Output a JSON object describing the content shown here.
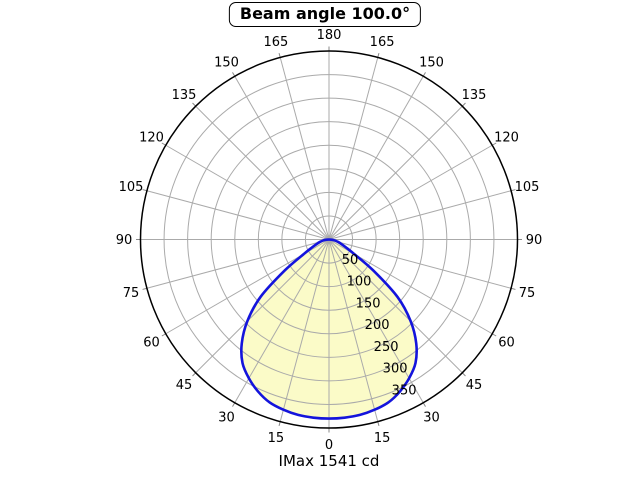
{
  "page": {
    "background": "#ffffff"
  },
  "chart_data": {
    "type": "polar",
    "title": "Beam angle 100.0°",
    "footer": "IMax 1541 cd",
    "beam_angle_deg": "100.0",
    "imax_cd": 1541,
    "angle_tick_labels_deg": [
      0,
      15,
      30,
      45,
      60,
      75,
      90,
      105,
      120,
      135,
      150,
      165,
      180
    ],
    "angle_grid_step_deg": 15,
    "radial_tick_labels": [
      50,
      100,
      150,
      200,
      250,
      300,
      350
    ],
    "radial_grid_step": 50,
    "radial_max": 400,
    "grid": true,
    "legend": false,
    "colors": {
      "curve": "#1414dc",
      "fill": "#fbfbc8",
      "grid": "#aaaaaa",
      "tick": "#888888",
      "axis": "#000000",
      "text": "#000000",
      "background": "#ffffff"
    },
    "curve": {
      "angles_deg": [
        -90,
        -85,
        -80,
        -75,
        -70,
        -65,
        -60,
        -55,
        -50,
        -45,
        -40,
        -35,
        -30,
        -25,
        -20,
        -15,
        -10,
        -5,
        0,
        5,
        10,
        15,
        20,
        25,
        30,
        35,
        40,
        45,
        50,
        55,
        60,
        65,
        70,
        75,
        80,
        85,
        90
      ],
      "intensity": [
        0,
        7,
        13,
        20,
        28,
        40,
        62,
        115,
        190,
        245,
        288,
        320,
        340,
        356,
        368,
        374,
        378,
        379.5,
        380,
        379.5,
        378,
        374,
        368,
        356,
        340,
        320,
        288,
        245,
        190,
        115,
        62,
        40,
        28,
        20,
        13,
        7,
        0
      ]
    }
  }
}
